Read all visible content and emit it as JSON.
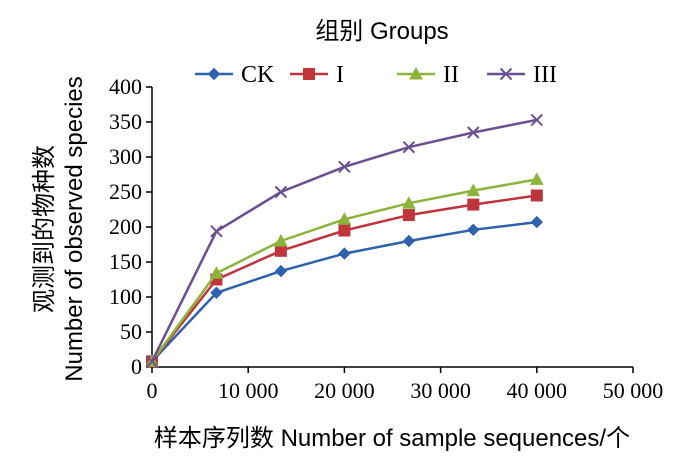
{
  "chart_data": {
    "type": "line",
    "legend_title": "组别 Groups",
    "legend_position": "top",
    "xlabel": "样本序列数  Number of sample sequences/个",
    "ylabel_line1": "观测到的物种数",
    "ylabel_line2": "Number of observed species",
    "xlim": [
      0,
      50000
    ],
    "ylim": [
      0,
      400
    ],
    "xticks": [
      0,
      10000,
      20000,
      30000,
      40000,
      50000
    ],
    "xtick_labels": [
      "0",
      "10 000",
      "20 000",
      "30 000",
      "40 000",
      "50 000"
    ],
    "yticks": [
      0,
      50,
      100,
      150,
      200,
      250,
      300,
      350,
      400
    ],
    "ytick_labels": [
      "0",
      "50",
      "100",
      "150",
      "200",
      "250",
      "300",
      "350",
      "400"
    ],
    "grid": false,
    "x": [
      0,
      6700,
      13400,
      20000,
      26700,
      33400,
      40000
    ],
    "series": [
      {
        "name": "CK",
        "color": "#2e62ad",
        "marker": "diamond",
        "values": [
          8,
          106,
          137,
          162,
          180,
          196,
          207
        ]
      },
      {
        "name": "I",
        "color": "#c0353b",
        "marker": "square",
        "values": [
          8,
          125,
          166,
          195,
          217,
          232,
          245
        ]
      },
      {
        "name": "II",
        "color": "#8cb33a",
        "marker": "triangle",
        "values": [
          8,
          134,
          180,
          211,
          234,
          252,
          268
        ]
      },
      {
        "name": "III",
        "color": "#6b4f93",
        "marker": "x",
        "values": [
          8,
          194,
          250,
          286,
          314,
          335,
          353
        ]
      }
    ]
  }
}
